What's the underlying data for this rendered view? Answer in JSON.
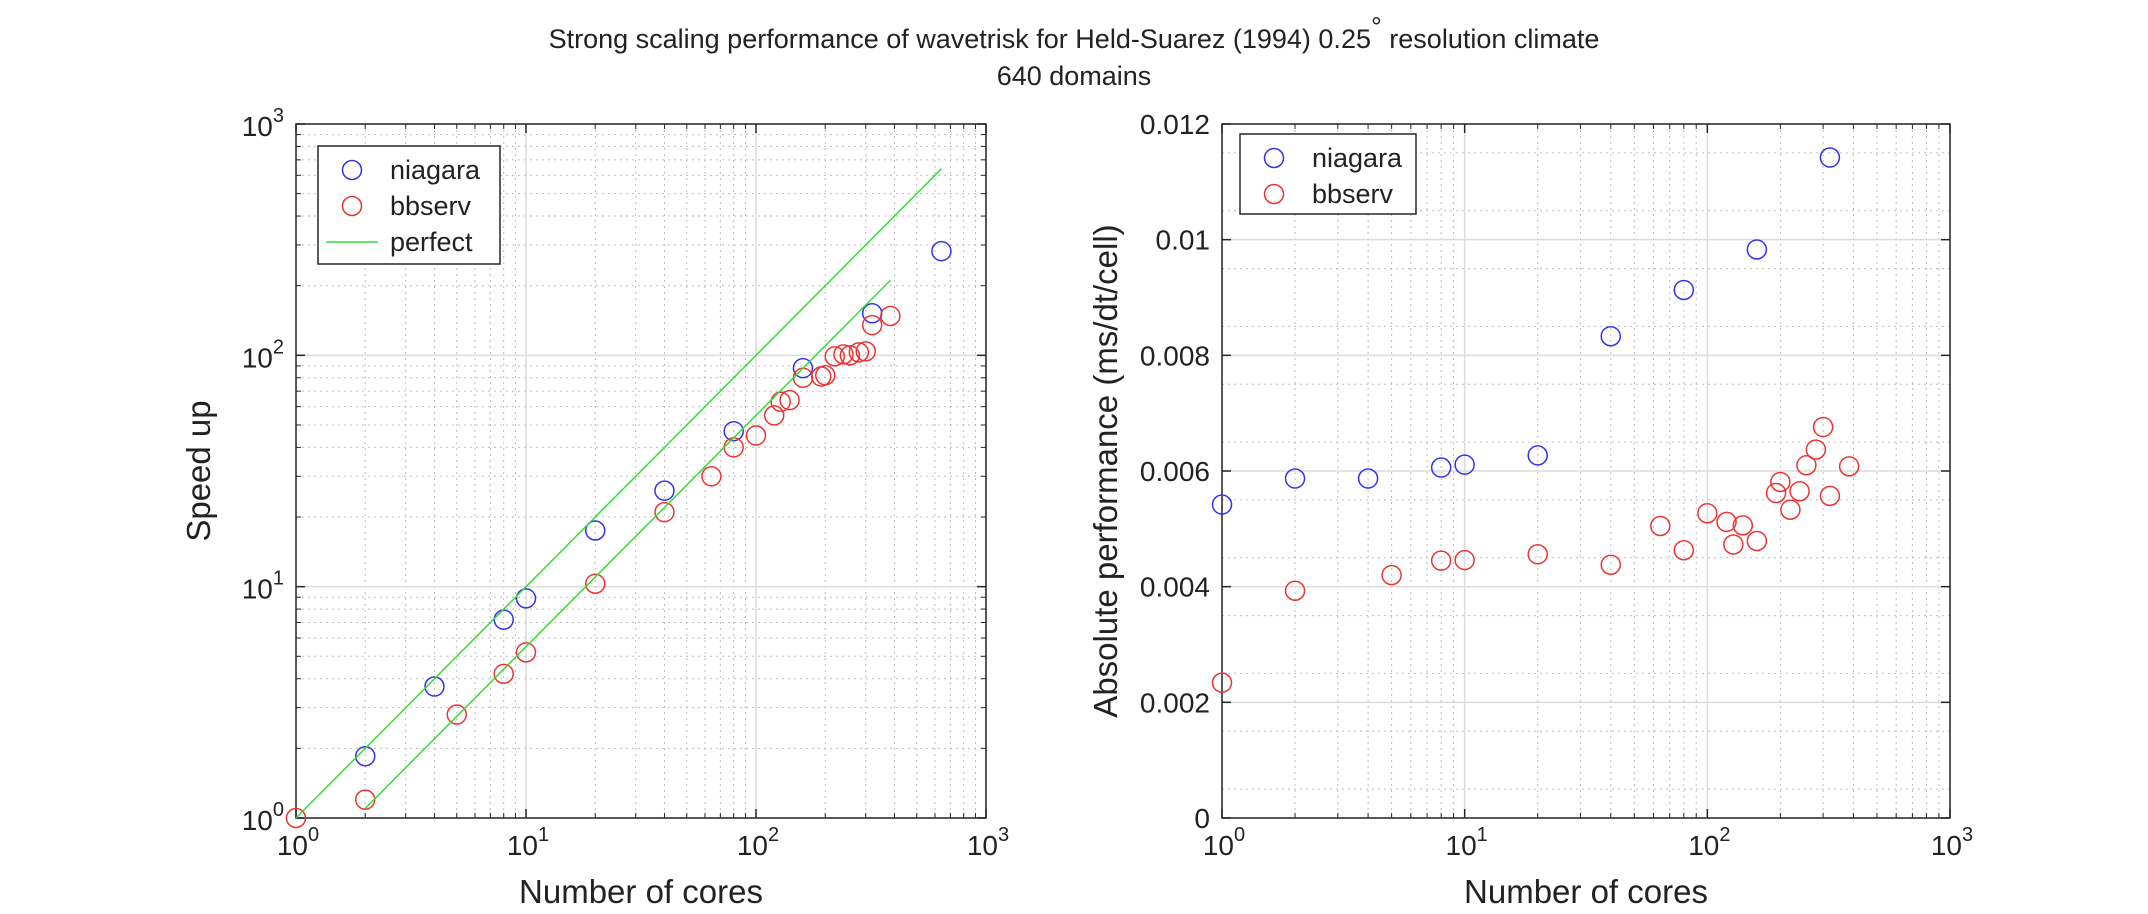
{
  "figure": {
    "title_line1": "Strong scaling performance of wavetrisk for Held-Suarez (1994) 0.25",
    "title_degree": "°",
    "title_line1_end": " resolution climate",
    "title_line2": "640 domains"
  },
  "chart_data": [
    {
      "type": "scatter",
      "xlabel": "Number of cores",
      "ylabel": "Speed up",
      "xscale": "log",
      "yscale": "log",
      "xlim": [
        1,
        1000
      ],
      "ylim": [
        1,
        1000
      ],
      "grid": true,
      "minor_grid": true,
      "legend": "top-left",
      "x_ticks": [
        {
          "value": 1,
          "base": "10",
          "exp": "0"
        },
        {
          "value": 10,
          "base": "10",
          "exp": "1"
        },
        {
          "value": 100,
          "base": "10",
          "exp": "2"
        },
        {
          "value": 1000,
          "base": "10",
          "exp": "3"
        }
      ],
      "y_ticks": [
        {
          "value": 1,
          "base": "10",
          "exp": "0"
        },
        {
          "value": 10,
          "base": "10",
          "exp": "1"
        },
        {
          "value": 100,
          "base": "10",
          "exp": "2"
        },
        {
          "value": 1000,
          "base": "10",
          "exp": "3"
        }
      ],
      "series": [
        {
          "name": "niagara",
          "color": "#3333ee",
          "marker": "circle",
          "x": [
            2,
            4,
            8,
            10,
            20,
            40,
            80,
            160,
            320,
            640
          ],
          "y": [
            1.85,
            3.7,
            7.2,
            8.9,
            17.5,
            26,
            47,
            88,
            152,
            282
          ]
        },
        {
          "name": "bbserv",
          "color": "#ee3333",
          "marker": "circle",
          "x": [
            1,
            2,
            5,
            8,
            10,
            20,
            40,
            64,
            80,
            100,
            120,
            128,
            140,
            160,
            192,
            200,
            220,
            240,
            256,
            280,
            300,
            320,
            384
          ],
          "y": [
            1,
            1.2,
            2.8,
            4.2,
            5.2,
            10.3,
            21,
            30,
            40,
            45,
            55,
            63,
            64,
            80,
            81,
            82,
            99,
            101,
            100,
            103,
            104,
            135,
            148
          ]
        },
        {
          "name": "perfect",
          "color": "#33dd33",
          "marker": "line",
          "segments": [
            {
              "x": [
                1,
                640
              ],
              "y": [
                1,
                640
              ]
            },
            {
              "x": [
                2,
                384
              ],
              "y": [
                1.1,
                211.2
              ]
            }
          ]
        }
      ]
    },
    {
      "type": "scatter",
      "xlabel": "Number of cores",
      "ylabel": "Absolute performance (ms/dt/cell)",
      "xscale": "log",
      "yscale": "linear",
      "xlim": [
        1,
        1000
      ],
      "ylim": [
        0,
        0.012
      ],
      "grid": true,
      "minor_grid": true,
      "legend": "top-left",
      "x_ticks": [
        {
          "value": 1,
          "base": "10",
          "exp": "0"
        },
        {
          "value": 10,
          "base": "10",
          "exp": "1"
        },
        {
          "value": 100,
          "base": "10",
          "exp": "2"
        },
        {
          "value": 1000,
          "base": "10",
          "exp": "3"
        }
      ],
      "y_ticks": [
        {
          "value": 0,
          "label": "0"
        },
        {
          "value": 0.002,
          "label": "0.002"
        },
        {
          "value": 0.004,
          "label": "0.004"
        },
        {
          "value": 0.006,
          "label": "0.006"
        },
        {
          "value": 0.008,
          "label": "0.008"
        },
        {
          "value": 0.01,
          "label": "0.01"
        },
        {
          "value": 0.012,
          "label": "0.012"
        }
      ],
      "series": [
        {
          "name": "niagara",
          "color": "#3333ee",
          "marker": "circle",
          "x": [
            1,
            2,
            4,
            8,
            10,
            20,
            40,
            80,
            160,
            320
          ],
          "y": [
            0.00542,
            0.00587,
            0.00587,
            0.00606,
            0.00611,
            0.00627,
            0.00833,
            0.00913,
            0.00983,
            0.01142
          ]
        },
        {
          "name": "bbserv",
          "color": "#ee3333",
          "marker": "circle",
          "x": [
            1,
            2,
            5,
            8,
            10,
            20,
            40,
            64,
            80,
            100,
            120,
            128,
            140,
            160,
            192,
            200,
            220,
            240,
            256,
            280,
            300,
            320,
            384
          ],
          "y": [
            0.00234,
            0.00393,
            0.0042,
            0.00445,
            0.00446,
            0.00456,
            0.00438,
            0.00505,
            0.00463,
            0.00527,
            0.00512,
            0.00473,
            0.00506,
            0.00479,
            0.00562,
            0.00581,
            0.00533,
            0.00565,
            0.0061,
            0.00637,
            0.00676,
            0.00557,
            0.00608
          ]
        }
      ]
    }
  ]
}
